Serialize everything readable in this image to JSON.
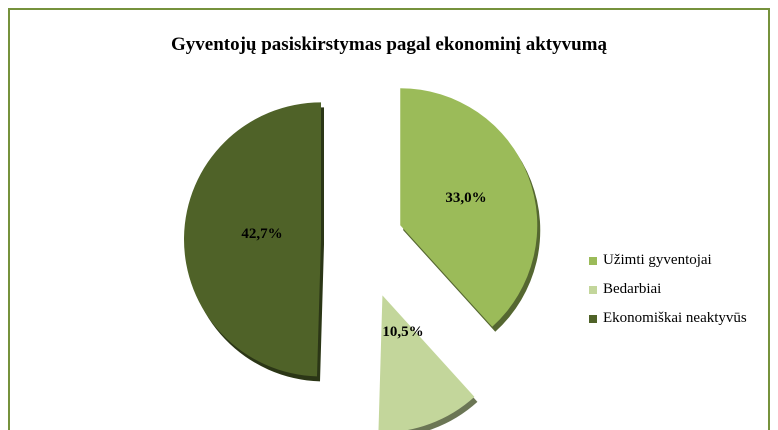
{
  "chart_data": {
    "type": "pie",
    "title": "Gyventojų pasiskirstymas pagal ekonominį aktyvumą",
    "slices": [
      {
        "name": "Užimti gyventojai",
        "value": 33.0,
        "label": "33,0%",
        "color": "#9bbb59"
      },
      {
        "name": "Bedarbiai",
        "value": 10.5,
        "label": "10,5%",
        "color": "#c3d69b"
      },
      {
        "name": "Ekonomiškai neaktyvūs",
        "value": 42.7,
        "label": "42,7%",
        "color": "#4f6228"
      }
    ],
    "legend_position": "right",
    "exploded": true
  }
}
